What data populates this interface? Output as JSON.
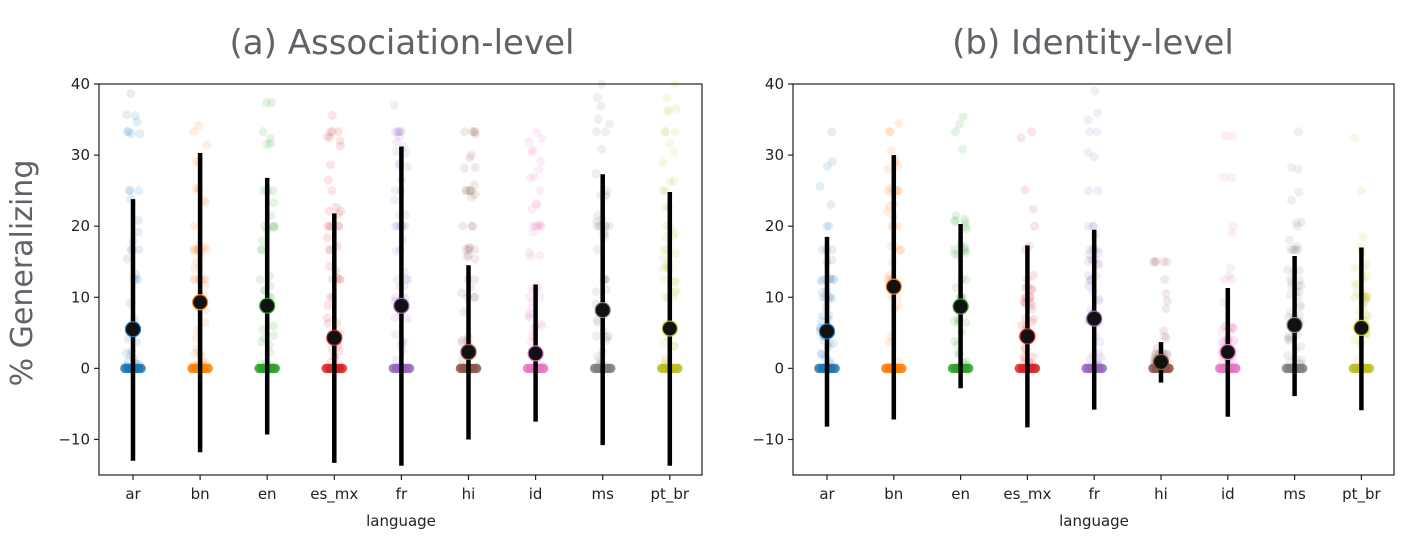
{
  "figure": {
    "ylabel": "% Generalizing",
    "xlabel": "language"
  },
  "chart_data": [
    {
      "type": "scatter",
      "title": "(a) Association-level",
      "xlabel": "language",
      "ylabel": "% Generalizing",
      "ylim": [
        -15,
        40
      ],
      "yticks": [
        "40",
        "30",
        "20",
        "10",
        "0",
        "−10"
      ],
      "categories": [
        "ar",
        "bn",
        "en",
        "es_mx",
        "fr",
        "hi",
        "id",
        "ms",
        "pt_br"
      ],
      "colors": [
        "#1f77b4",
        "#ff7f0e",
        "#2ca02c",
        "#d62728",
        "#9467bd",
        "#8c564b",
        "#e377c2",
        "#7f7f7f",
        "#bcbd22"
      ],
      "means": [
        5.5,
        9.3,
        8.8,
        4.3,
        8.8,
        2.3,
        2.1,
        8.2,
        5.6
      ],
      "err_low": [
        -13.0,
        -11.8,
        -9.3,
        -13.3,
        -13.7,
        -10.0,
        -7.5,
        -10.8,
        -13.7
      ],
      "err_high": [
        23.8,
        30.3,
        26.8,
        21.8,
        31.2,
        14.5,
        11.8,
        27.3,
        24.8
      ],
      "spread_max": [
        40,
        35,
        40,
        36.5,
        40,
        33.3,
        33.3,
        40,
        40
      ]
    },
    {
      "type": "scatter",
      "title": "(b) Identity-level",
      "xlabel": "language",
      "ylabel": "",
      "ylim": [
        -15,
        40
      ],
      "yticks": [
        "40",
        "30",
        "20",
        "10",
        "0",
        "−10"
      ],
      "categories": [
        "ar",
        "bn",
        "en",
        "es_mx",
        "fr",
        "hi",
        "id",
        "ms",
        "pt_br"
      ],
      "colors": [
        "#1f77b4",
        "#ff7f0e",
        "#2ca02c",
        "#d62728",
        "#9467bd",
        "#8c564b",
        "#e377c2",
        "#7f7f7f",
        "#bcbd22"
      ],
      "means": [
        5.2,
        11.5,
        8.7,
        4.5,
        7.0,
        0.9,
        2.3,
        6.1,
        5.7
      ],
      "err_low": [
        -8.2,
        -7.2,
        -2.8,
        -8.3,
        -5.8,
        -2.0,
        -6.8,
        -3.9,
        -5.9
      ],
      "err_high": [
        18.5,
        30.0,
        20.3,
        17.3,
        19.5,
        3.7,
        11.3,
        15.8,
        17.0
      ],
      "spread_max": [
        35,
        38.5,
        38.5,
        33.3,
        40,
        15,
        34,
        33.3,
        35.5
      ]
    }
  ]
}
